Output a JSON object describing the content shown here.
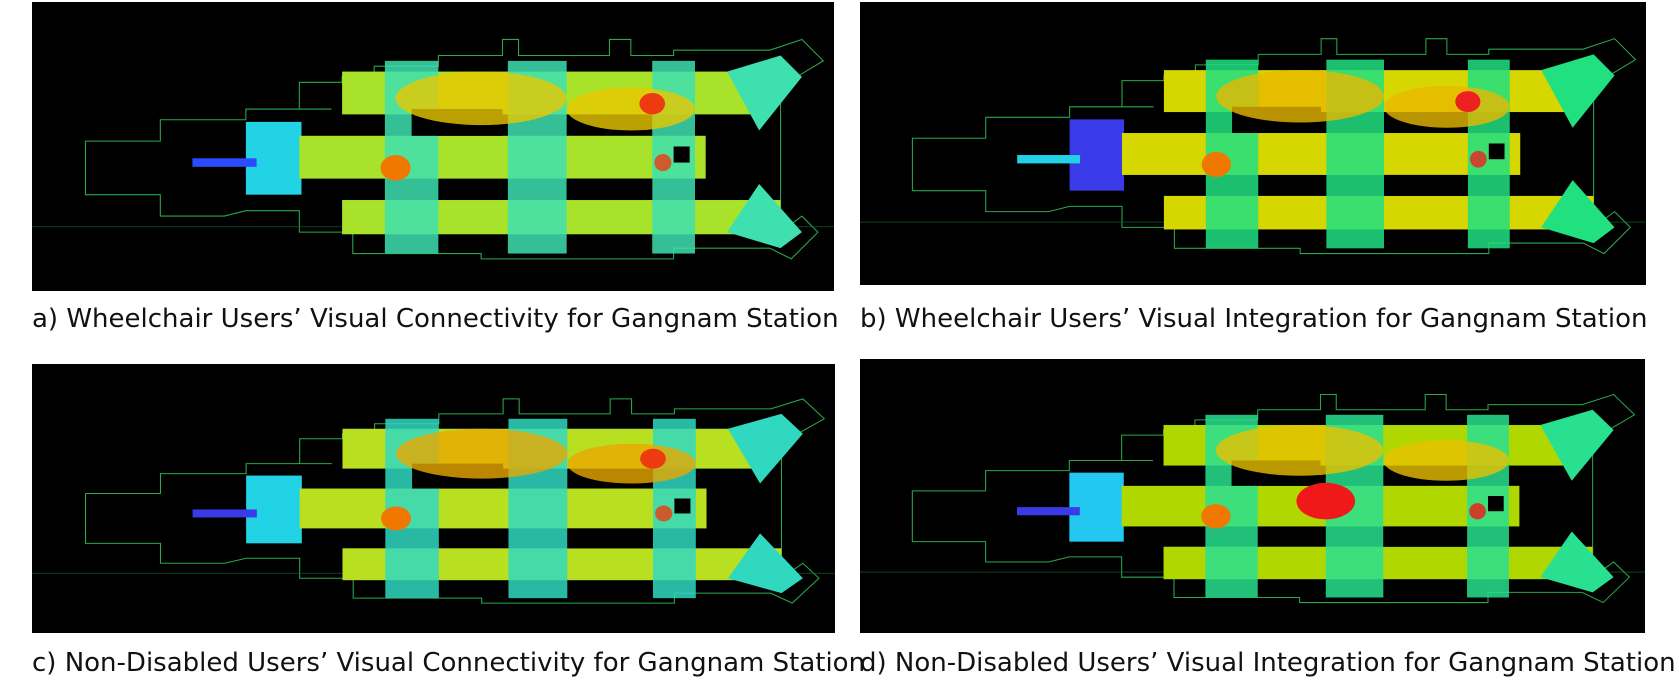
{
  "panels": [
    {
      "caption": "a) Wheelchair Users’ Visual Connectivity for Gangnam Station"
    },
    {
      "caption": "b) Wheelchair Users’ Visual Integration for Gangnam Station"
    },
    {
      "caption": "c) Non-Disabled Users’ Visual Connectivity for Gangnam Station"
    },
    {
      "caption": "d) Non-Disabled Users’ Visual Integration for Gangnam Station"
    }
  ]
}
